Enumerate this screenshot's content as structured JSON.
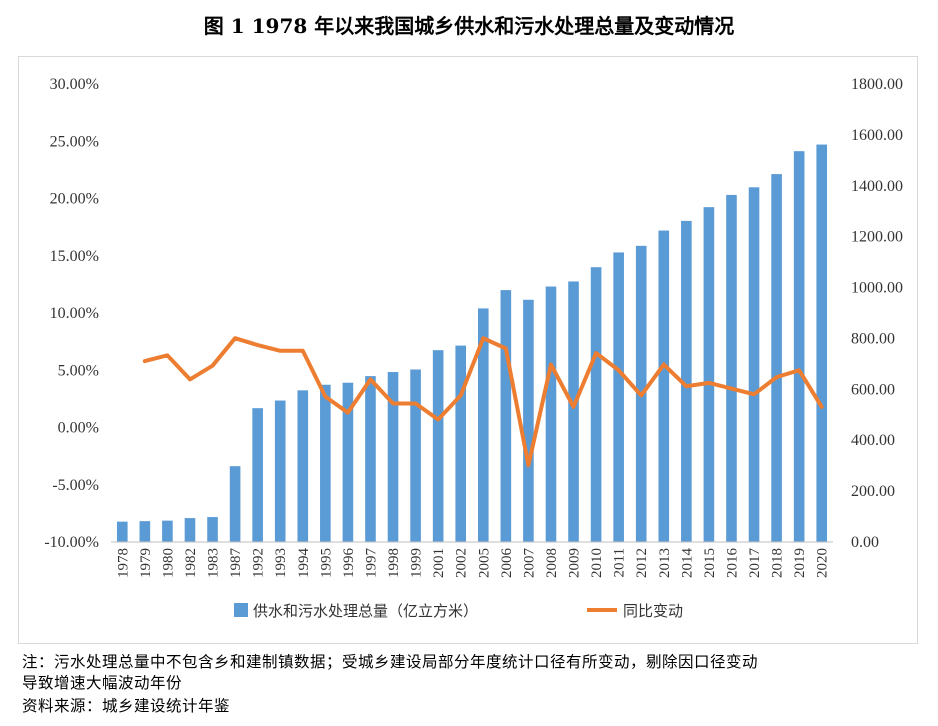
{
  "figure_title": "图 1    1978 年以来我国城乡供水和污水处理总量及变动情况",
  "notes": {
    "line1": "注：污水处理总量中不包含乡和建制镇数据；受城乡建设局部分年度统计口径有所变动，剔除因口径变动",
    "line2": "导致增速大幅波动年份",
    "line3": "资料来源：城乡建设统计年鉴"
  },
  "chart_data": {
    "type": "bar+line",
    "categories": [
      "1978",
      "1979",
      "1980",
      "1982",
      "1983",
      "1987",
      "1992",
      "1993",
      "1994",
      "1995",
      "1996",
      "1997",
      "1998",
      "1999",
      "2001",
      "2002",
      "2005",
      "2006",
      "2007",
      "2008",
      "2009",
      "2010",
      "2011",
      "2012",
      "2013",
      "2014",
      "2015",
      "2016",
      "2017",
      "2018",
      "2019",
      "2020"
    ],
    "series": [
      {
        "name": "供水和污水处理总量（亿立方米）",
        "type": "bar",
        "axis": "right",
        "color": "#5b9bd5",
        "values": [
          80,
          82,
          84,
          94,
          98,
          298,
          526,
          556,
          596,
          618,
          626,
          652,
          668,
          678,
          754,
          772,
          918,
          990,
          952,
          1004,
          1024,
          1080,
          1138,
          1164,
          1224,
          1262,
          1316,
          1364,
          1394,
          1446,
          1536,
          1562
        ]
      },
      {
        "name": "同比变动",
        "type": "line",
        "axis": "left",
        "color": "#ed7d31",
        "values": [
          null,
          5.8,
          6.3,
          4.2,
          5.4,
          7.8,
          7.2,
          6.7,
          6.7,
          2.7,
          1.3,
          4.2,
          2.1,
          2.1,
          0.7,
          2.8,
          7.8,
          6.9,
          -3.3,
          5.5,
          1.8,
          6.5,
          5.0,
          2.8,
          5.5,
          3.6,
          3.9,
          3.4,
          2.9,
          4.4,
          5.0,
          1.8
        ]
      }
    ],
    "y_left": {
      "min": -10,
      "max": 30,
      "step": 5,
      "tick_labels": [
        "-10.00%",
        "-5.00%",
        "0.00%",
        "5.00%",
        "10.00%",
        "15.00%",
        "20.00%",
        "25.00%",
        "30.00%"
      ]
    },
    "y_right": {
      "min": 0,
      "max": 1800,
      "step": 200,
      "tick_labels": [
        "0.00",
        "200.00",
        "400.00",
        "600.00",
        "800.00",
        "1000.00",
        "1200.00",
        "1400.00",
        "1600.00",
        "1800.00"
      ]
    },
    "legend": {
      "position": "bottom"
    }
  }
}
